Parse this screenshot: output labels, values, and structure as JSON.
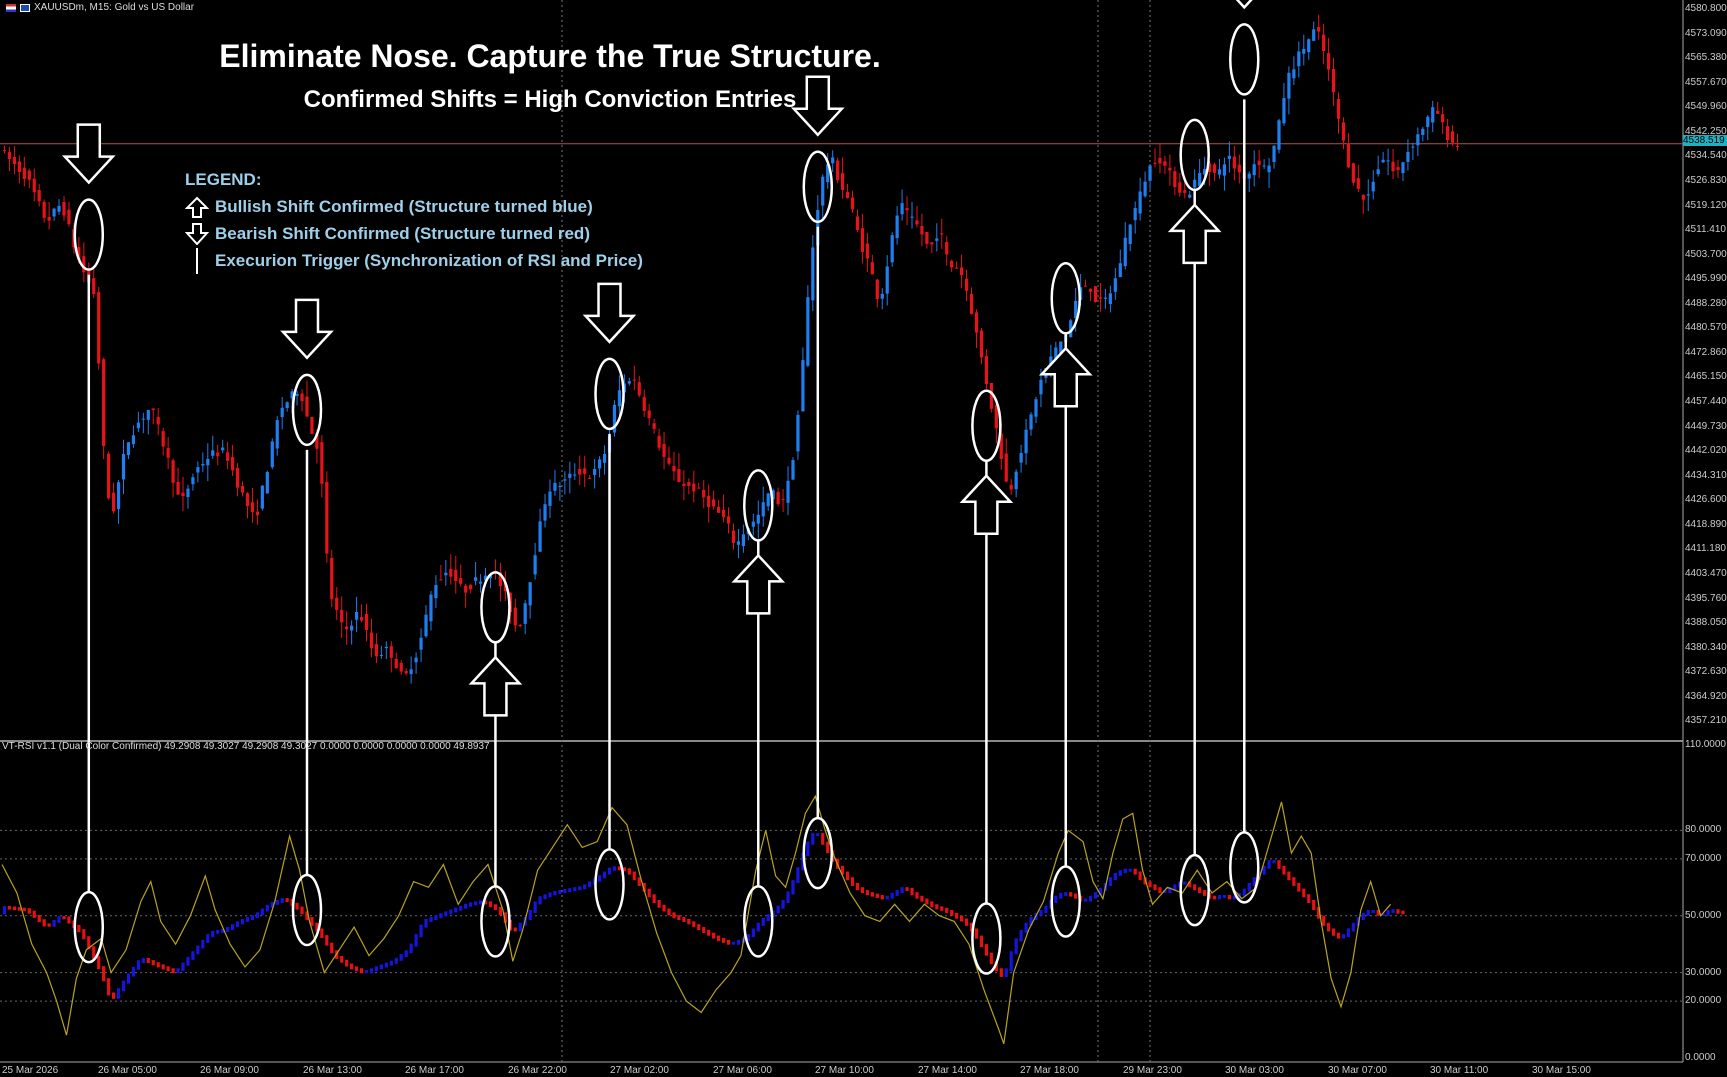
{
  "header": {
    "symbol_text": "XAUUSDm, M15:  Gold vs US Dollar"
  },
  "titles": {
    "main": "Eliminate Nose. Capture the True Structure.",
    "sub": "Confirmed Shifts = High Conviction Entries"
  },
  "legend": {
    "heading": "LEGEND:",
    "bullish": "Bullish Shift Confirmed (Structure turned blue)",
    "bearish": "Bearish Shift Confirmed (Structure turned red)",
    "trigger": "Execurion Trigger (Synchronization of RSI and Price)"
  },
  "indicator": {
    "label": "VT-RSI v1.1 (Dual Color Confirmed) 49.2908 49.3027 49.2908 49.3027 0.0000 0.0000 0.0000 0.0000 49.8937"
  },
  "current_price": "4538.519",
  "colors": {
    "background": "#000000",
    "bull": "#1e7ff0",
    "bear": "#e8131a",
    "rsi_bull": "#1515e0",
    "rsi_bear": "#e81010",
    "rsi_line": "#b8a41e",
    "annotation": "#ffffff",
    "legend_text": "#9fd0ea",
    "price_line": "#b05050"
  },
  "chart_data": {
    "type": "candlestick",
    "price_axis": {
      "ticks": [
        "4580.800",
        "4573.090",
        "4565.380",
        "4557.670",
        "4549.960",
        "4542.250",
        "4534.540",
        "4526.830",
        "4519.120",
        "4511.410",
        "4503.700",
        "4495.990",
        "4488.280",
        "4480.570",
        "4472.860",
        "4465.150",
        "4457.440",
        "4449.730",
        "4442.020",
        "4434.310",
        "4426.600",
        "4418.890",
        "4411.180",
        "4403.470",
        "4395.760",
        "4388.050",
        "4380.340",
        "4372.630",
        "4364.920",
        "4357.210"
      ],
      "range": [
        4352.0,
        4583.0
      ]
    },
    "rsi_axis": {
      "ticks": [
        "110.0000",
        "80.0000",
        "70.0000",
        "50.0000",
        "30.0000",
        "20.0000",
        "0.0000"
      ],
      "levels": [
        80,
        70,
        50,
        30,
        20
      ],
      "range": [
        0,
        110
      ]
    },
    "time_axis": {
      "labels": [
        "25 Mar 2026",
        "26 Mar 05:00",
        "26 Mar 09:00",
        "26 Mar 13:00",
        "26 Mar 17:00",
        "26 Mar 22:00",
        "27 Mar 02:00",
        "27 Mar 06:00",
        "27 Mar 10:00",
        "27 Mar 14:00",
        "27 Mar 18:00",
        "29 Mar 23:00",
        "30 Mar 03:00",
        "30 Mar 07:00",
        "30 Mar 11:00",
        "30 Mar 15:00"
      ]
    },
    "price_path": [
      [
        0,
        4536
      ],
      [
        5,
        4528
      ],
      [
        9,
        4514
      ],
      [
        12,
        4520
      ],
      [
        15,
        4504
      ],
      [
        16,
        4500
      ],
      [
        19,
        4490
      ],
      [
        20,
        4450
      ],
      [
        22,
        4420
      ],
      [
        25,
        4444
      ],
      [
        27,
        4450
      ],
      [
        30,
        4456
      ],
      [
        33,
        4442
      ],
      [
        36,
        4425
      ],
      [
        39,
        4436
      ],
      [
        42,
        4441
      ],
      [
        45,
        4442
      ],
      [
        48,
        4430
      ],
      [
        51,
        4420
      ],
      [
        54,
        4440
      ],
      [
        56,
        4455
      ],
      [
        60,
        4462
      ],
      [
        62,
        4450
      ],
      [
        64,
        4442
      ],
      [
        66,
        4398
      ],
      [
        69,
        4385
      ],
      [
        72,
        4392
      ],
      [
        75,
        4378
      ],
      [
        78,
        4380
      ],
      [
        81,
        4370
      ],
      [
        84,
        4380
      ],
      [
        87,
        4400
      ],
      [
        90,
        4405
      ],
      [
        93,
        4398
      ],
      [
        96,
        4402
      ],
      [
        99,
        4405
      ],
      [
        102,
        4395
      ],
      [
        104,
        4385
      ],
      [
        106,
        4398
      ],
      [
        108,
        4415
      ],
      [
        110,
        4430
      ],
      [
        113,
        4432
      ],
      [
        116,
        4436
      ],
      [
        119,
        4434
      ],
      [
        122,
        4443
      ],
      [
        124,
        4460
      ],
      [
        127,
        4466
      ],
      [
        129,
        4458
      ],
      [
        131,
        4450
      ],
      [
        134,
        4438
      ],
      [
        137,
        4432
      ],
      [
        140,
        4430
      ],
      [
        143,
        4425
      ],
      [
        146,
        4420
      ],
      [
        148,
        4412
      ],
      [
        150,
        4418
      ],
      [
        152,
        4420
      ],
      [
        155,
        4430
      ],
      [
        157,
        4425
      ],
      [
        159,
        4434
      ],
      [
        161,
        4460
      ],
      [
        163,
        4500
      ],
      [
        165,
        4525
      ],
      [
        167,
        4535
      ],
      [
        169,
        4526
      ],
      [
        171,
        4520
      ],
      [
        173,
        4508
      ],
      [
        175,
        4500
      ],
      [
        177,
        4488
      ],
      [
        179,
        4505
      ],
      [
        181,
        4520
      ],
      [
        183,
        4515
      ],
      [
        185,
        4512
      ],
      [
        187,
        4505
      ],
      [
        189,
        4512
      ],
      [
        191,
        4500
      ],
      [
        193,
        4500
      ],
      [
        195,
        4490
      ],
      [
        197,
        4475
      ],
      [
        199,
        4460
      ],
      [
        201,
        4445
      ],
      [
        203,
        4428
      ],
      [
        205,
        4440
      ],
      [
        207,
        4450
      ],
      [
        209,
        4462
      ],
      [
        211,
        4470
      ],
      [
        213,
        4475
      ],
      [
        215,
        4480
      ],
      [
        217,
        4492
      ],
      [
        219,
        4495
      ],
      [
        221,
        4488
      ],
      [
        223,
        4490
      ],
      [
        225,
        4498
      ],
      [
        227,
        4512
      ],
      [
        229,
        4520
      ],
      [
        231,
        4530
      ],
      [
        233,
        4535
      ],
      [
        235,
        4530
      ],
      [
        237,
        4525
      ],
      [
        239,
        4522
      ],
      [
        241,
        4528
      ],
      [
        243,
        4532
      ],
      [
        245,
        4528
      ],
      [
        247,
        4535
      ],
      [
        249,
        4530
      ],
      [
        251,
        4528
      ],
      [
        253,
        4534
      ],
      [
        255,
        4530
      ],
      [
        257,
        4540
      ],
      [
        259,
        4558
      ],
      [
        261,
        4565
      ],
      [
        263,
        4570
      ],
      [
        265,
        4575
      ],
      [
        267,
        4565
      ],
      [
        269,
        4550
      ],
      [
        271,
        4535
      ],
      [
        273,
        4525
      ],
      [
        275,
        4520
      ],
      [
        277,
        4530
      ],
      [
        279,
        4535
      ],
      [
        281,
        4528
      ],
      [
        283,
        4535
      ],
      [
        285,
        4540
      ],
      [
        287,
        4545
      ],
      [
        289,
        4550
      ],
      [
        291,
        4542
      ],
      [
        293,
        4538
      ]
    ],
    "rsi_path": [
      [
        0,
        53
      ],
      [
        5,
        52
      ],
      [
        9,
        46
      ],
      [
        12,
        50
      ],
      [
        16,
        44
      ],
      [
        20,
        30
      ],
      [
        22,
        20
      ],
      [
        25,
        28
      ],
      [
        28,
        35
      ],
      [
        32,
        32
      ],
      [
        35,
        30
      ],
      [
        38,
        36
      ],
      [
        42,
        44
      ],
      [
        45,
        45
      ],
      [
        48,
        48
      ],
      [
        51,
        50
      ],
      [
        54,
        54
      ],
      [
        57,
        56
      ],
      [
        60,
        52
      ],
      [
        64,
        44
      ],
      [
        67,
        36
      ],
      [
        70,
        32
      ],
      [
        73,
        30
      ],
      [
        76,
        32
      ],
      [
        79,
        34
      ],
      [
        82,
        38
      ],
      [
        85,
        48
      ],
      [
        88,
        50
      ],
      [
        91,
        52
      ],
      [
        94,
        54
      ],
      [
        97,
        55
      ],
      [
        100,
        52
      ],
      [
        103,
        44
      ],
      [
        106,
        50
      ],
      [
        108,
        56
      ],
      [
        111,
        58
      ],
      [
        114,
        59
      ],
      [
        117,
        60
      ],
      [
        120,
        63
      ],
      [
        123,
        67
      ],
      [
        126,
        66
      ],
      [
        129,
        60
      ],
      [
        132,
        54
      ],
      [
        135,
        50
      ],
      [
        138,
        48
      ],
      [
        141,
        45
      ],
      [
        144,
        42
      ],
      [
        147,
        40
      ],
      [
        150,
        42
      ],
      [
        153,
        48
      ],
      [
        156,
        52
      ],
      [
        158,
        56
      ],
      [
        160,
        64
      ],
      [
        162,
        74
      ],
      [
        164,
        80
      ],
      [
        166,
        74
      ],
      [
        168,
        68
      ],
      [
        170,
        64
      ],
      [
        172,
        60
      ],
      [
        174,
        58
      ],
      [
        176,
        57
      ],
      [
        178,
        56
      ],
      [
        180,
        58
      ],
      [
        182,
        60
      ],
      [
        184,
        57
      ],
      [
        186,
        55
      ],
      [
        188,
        53
      ],
      [
        190,
        52
      ],
      [
        192,
        50
      ],
      [
        194,
        48
      ],
      [
        196,
        44
      ],
      [
        198,
        38
      ],
      [
        200,
        32
      ],
      [
        202,
        28
      ],
      [
        204,
        40
      ],
      [
        206,
        46
      ],
      [
        208,
        50
      ],
      [
        210,
        52
      ],
      [
        212,
        56
      ],
      [
        214,
        58
      ],
      [
        216,
        57
      ],
      [
        218,
        55
      ],
      [
        220,
        57
      ],
      [
        222,
        60
      ],
      [
        224,
        64
      ],
      [
        226,
        66
      ],
      [
        228,
        66
      ],
      [
        230,
        62
      ],
      [
        232,
        60
      ],
      [
        234,
        58
      ],
      [
        236,
        60
      ],
      [
        238,
        62
      ],
      [
        240,
        60
      ],
      [
        242,
        58
      ],
      [
        244,
        56
      ],
      [
        246,
        57
      ],
      [
        248,
        56
      ],
      [
        250,
        58
      ],
      [
        252,
        62
      ],
      [
        254,
        66
      ],
      [
        256,
        70
      ],
      [
        258,
        66
      ],
      [
        260,
        62
      ],
      [
        262,
        58
      ],
      [
        264,
        54
      ],
      [
        266,
        48
      ],
      [
        268,
        44
      ],
      [
        270,
        42
      ],
      [
        272,
        46
      ],
      [
        274,
        50
      ],
      [
        276,
        52
      ],
      [
        278,
        50
      ],
      [
        280,
        52
      ],
      [
        282,
        51
      ]
    ],
    "rsi_signal_path": [
      [
        0,
        68
      ],
      [
        3,
        58
      ],
      [
        6,
        40
      ],
      [
        9,
        30
      ],
      [
        11,
        20
      ],
      [
        13,
        8
      ],
      [
        15,
        28
      ],
      [
        17,
        38
      ],
      [
        20,
        42
      ],
      [
        22,
        30
      ],
      [
        25,
        38
      ],
      [
        28,
        55
      ],
      [
        30,
        62
      ],
      [
        32,
        48
      ],
      [
        35,
        40
      ],
      [
        38,
        50
      ],
      [
        41,
        64
      ],
      [
        43,
        52
      ],
      [
        46,
        40
      ],
      [
        49,
        32
      ],
      [
        52,
        38
      ],
      [
        55,
        55
      ],
      [
        58,
        78
      ],
      [
        60,
        66
      ],
      [
        62,
        48
      ],
      [
        65,
        30
      ],
      [
        68,
        38
      ],
      [
        71,
        46
      ],
      [
        74,
        36
      ],
      [
        77,
        42
      ],
      [
        80,
        50
      ],
      [
        83,
        62
      ],
      [
        86,
        60
      ],
      [
        89,
        68
      ],
      [
        92,
        54
      ],
      [
        95,
        62
      ],
      [
        98,
        68
      ],
      [
        101,
        52
      ],
      [
        103,
        34
      ],
      [
        105,
        45
      ],
      [
        108,
        66
      ],
      [
        111,
        74
      ],
      [
        114,
        82
      ],
      [
        117,
        74
      ],
      [
        120,
        76
      ],
      [
        123,
        88
      ],
      [
        126,
        82
      ],
      [
        129,
        62
      ],
      [
        132,
        44
      ],
      [
        135,
        30
      ],
      [
        138,
        20
      ],
      [
        141,
        16
      ],
      [
        144,
        24
      ],
      [
        147,
        30
      ],
      [
        149,
        36
      ],
      [
        152,
        66
      ],
      [
        154,
        80
      ],
      [
        156,
        64
      ],
      [
        158,
        60
      ],
      [
        160,
        72
      ],
      [
        162,
        86
      ],
      [
        164,
        92
      ],
      [
        166,
        80
      ],
      [
        168,
        70
      ],
      [
        171,
        58
      ],
      [
        174,
        50
      ],
      [
        177,
        48
      ],
      [
        180,
        54
      ],
      [
        183,
        48
      ],
      [
        186,
        54
      ],
      [
        189,
        50
      ],
      [
        192,
        48
      ],
      [
        195,
        40
      ],
      [
        198,
        24
      ],
      [
        201,
        10
      ],
      [
        202,
        5
      ],
      [
        204,
        30
      ],
      [
        207,
        45
      ],
      [
        210,
        55
      ],
      [
        213,
        72
      ],
      [
        215,
        80
      ],
      [
        218,
        76
      ],
      [
        220,
        62
      ],
      [
        222,
        56
      ],
      [
        224,
        72
      ],
      [
        226,
        84
      ],
      [
        228,
        86
      ],
      [
        230,
        66
      ],
      [
        232,
        54
      ],
      [
        235,
        60
      ],
      [
        238,
        58
      ],
      [
        241,
        66
      ],
      [
        244,
        58
      ],
      [
        247,
        62
      ],
      [
        250,
        56
      ],
      [
        253,
        60
      ],
      [
        256,
        78
      ],
      [
        258,
        90
      ],
      [
        260,
        72
      ],
      [
        262,
        78
      ],
      [
        264,
        72
      ],
      [
        266,
        48
      ],
      [
        268,
        28
      ],
      [
        270,
        18
      ],
      [
        272,
        30
      ],
      [
        274,
        52
      ],
      [
        276,
        62
      ],
      [
        278,
        50
      ],
      [
        280,
        54
      ]
    ],
    "signals": [
      {
        "type": "bearish",
        "bar": 17,
        "price": 4510,
        "rsi": 46
      },
      {
        "type": "bearish",
        "bar": 61,
        "price": 4455,
        "rsi": 52
      },
      {
        "type": "bullish",
        "bar": 99,
        "price": 4393,
        "rsi": 48
      },
      {
        "type": "bearish",
        "bar": 122,
        "price": 4460,
        "rsi": 61
      },
      {
        "type": "bullish",
        "bar": 152,
        "price": 4425,
        "rsi": 48
      },
      {
        "type": "bearish",
        "bar": 164,
        "price": 4525,
        "rsi": 72
      },
      {
        "type": "bullish",
        "bar": 198,
        "price": 4450,
        "rsi": 42
      },
      {
        "type": "bullish",
        "bar": 214,
        "price": 4490,
        "rsi": 55
      },
      {
        "type": "bullish",
        "bar": 240,
        "price": 4535,
        "rsi": 59
      },
      {
        "type": "bearish",
        "bar": 250,
        "price": 4565,
        "rsi": 67
      }
    ],
    "grid": "vertical dotted separators",
    "current_price_line": 4538.5
  }
}
